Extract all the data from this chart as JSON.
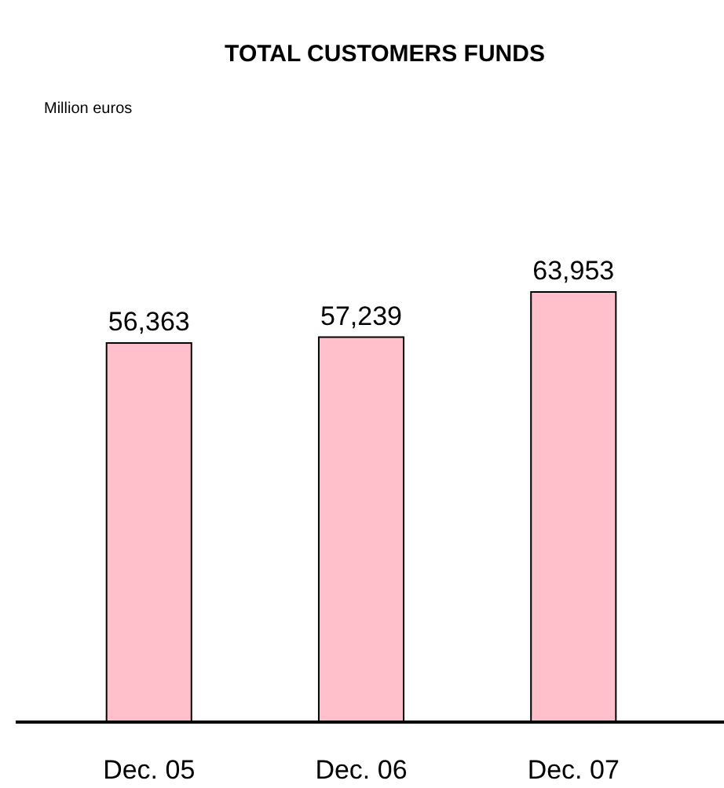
{
  "chart_data": {
    "type": "bar",
    "title": "TOTAL CUSTOMERS FUNDS",
    "subtitle": "Million euros",
    "categories": [
      "Dec. 05",
      "Dec. 06",
      "Dec. 07"
    ],
    "values": [
      56363,
      57239,
      63953
    ],
    "value_labels": [
      "56,363",
      "57,239",
      "63,953"
    ],
    "color": "#ffc0cb"
  }
}
